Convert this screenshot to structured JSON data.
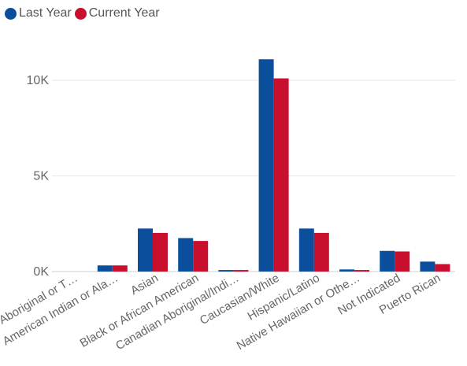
{
  "colors": {
    "last_year": "#0b4f9c",
    "current_year": "#c8102e",
    "grid": "#e6e6e6",
    "axis": "#cfcfcf",
    "text": "#666666"
  },
  "chart_data": {
    "type": "bar",
    "title": "",
    "xlabel": "",
    "ylabel": "",
    "legend_position": "top-left",
    "grid": true,
    "ylim": [
      0,
      12000
    ],
    "yticks": [
      {
        "value": 0,
        "label": "0K"
      },
      {
        "value": 5000,
        "label": "5K"
      },
      {
        "value": 10000,
        "label": "10K"
      }
    ],
    "categories": [
      "Aboriginal or T…",
      "American Indian or Ala…",
      "Asian",
      "Black or African American",
      "Canadian Aboriginal/Indi…",
      "Caucasian/White",
      "Hispanic/Latino",
      "Native Hawaiian or Othe…",
      "Not Indicated",
      "Puerto Rican"
    ],
    "series": [
      {
        "name": "Last Year",
        "values": [
          0,
          320,
          2250,
          1750,
          80,
          11100,
          2250,
          110,
          1080,
          520
        ]
      },
      {
        "name": "Current Year",
        "values": [
          0,
          320,
          2020,
          1600,
          80,
          10100,
          2020,
          80,
          1050,
          390
        ]
      }
    ]
  }
}
